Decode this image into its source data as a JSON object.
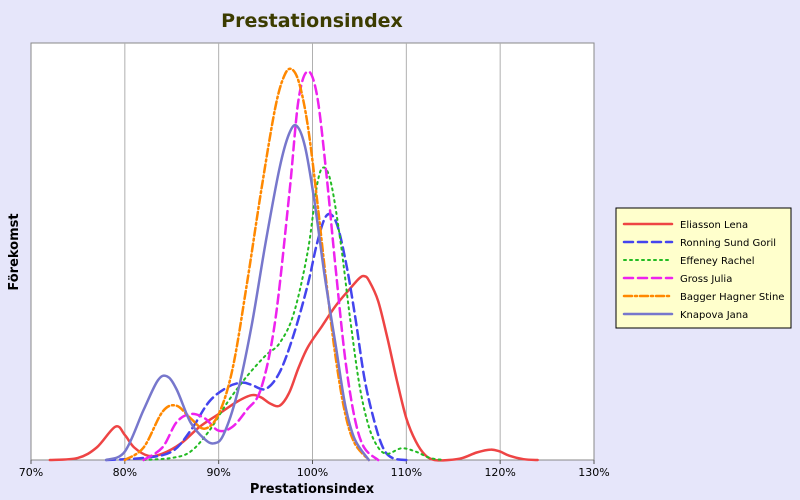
{
  "chart_data": {
    "type": "line",
    "title": "Prestationsindex",
    "xlabel": "Prestationsindex",
    "ylabel": "Förekomst",
    "xlim": [
      70,
      130
    ],
    "ylim": [
      0,
      1
    ],
    "x_ticks": [
      "70%",
      "80%",
      "90%",
      "100%",
      "110%",
      "120%",
      "130%"
    ],
    "grid": "vertical",
    "legend_position": "right",
    "series": [
      {
        "name": "Eliasson Lena",
        "color": "#ee4444",
        "dash": "solid",
        "points": [
          [
            72,
            0
          ],
          [
            75,
            0.005
          ],
          [
            77,
            0.03
          ],
          [
            79,
            0.08
          ],
          [
            80,
            0.06
          ],
          [
            81,
            0.03
          ],
          [
            82.5,
            0.01
          ],
          [
            84,
            0.015
          ],
          [
            86,
            0.04
          ],
          [
            88,
            0.08
          ],
          [
            90,
            0.11
          ],
          [
            92,
            0.14
          ],
          [
            93.5,
            0.155
          ],
          [
            94.5,
            0.15
          ],
          [
            95.5,
            0.135
          ],
          [
            96.5,
            0.13
          ],
          [
            97.5,
            0.16
          ],
          [
            98.5,
            0.22
          ],
          [
            99.5,
            0.27
          ],
          [
            101,
            0.32
          ],
          [
            102.5,
            0.37
          ],
          [
            104,
            0.41
          ],
          [
            105,
            0.435
          ],
          [
            105.5,
            0.44
          ],
          [
            106,
            0.43
          ],
          [
            107,
            0.38
          ],
          [
            108,
            0.29
          ],
          [
            109,
            0.19
          ],
          [
            110,
            0.1
          ],
          [
            111,
            0.045
          ],
          [
            112,
            0.012
          ],
          [
            113,
            0.0
          ],
          [
            114.5,
            0.0
          ],
          [
            116,
            0.005
          ],
          [
            117.5,
            0.018
          ],
          [
            119,
            0.025
          ],
          [
            120,
            0.02
          ],
          [
            121,
            0.01
          ],
          [
            122.5,
            0.002
          ],
          [
            124,
            0
          ]
        ]
      },
      {
        "name": "Ronning Sund Goril",
        "color": "#4444ee",
        "dash": "long-dash",
        "points": [
          [
            78,
            0
          ],
          [
            82,
            0.005
          ],
          [
            85,
            0.02
          ],
          [
            87,
            0.07
          ],
          [
            89,
            0.14
          ],
          [
            91,
            0.175
          ],
          [
            92.5,
            0.185
          ],
          [
            93.5,
            0.18
          ],
          [
            95,
            0.17
          ],
          [
            96.5,
            0.21
          ],
          [
            98,
            0.3
          ],
          [
            99.5,
            0.42
          ],
          [
            100.5,
            0.52
          ],
          [
            101.5,
            0.585
          ],
          [
            102.5,
            0.57
          ],
          [
            103.5,
            0.48
          ],
          [
            104.5,
            0.35
          ],
          [
            105.5,
            0.2
          ],
          [
            106.5,
            0.1
          ],
          [
            107.5,
            0.03
          ],
          [
            108.5,
            0.005
          ],
          [
            110,
            0
          ]
        ]
      },
      {
        "name": "Effeney Rachel",
        "color": "#22bb22",
        "dash": "dotted",
        "points": [
          [
            82,
            0
          ],
          [
            85,
            0.005
          ],
          [
            87,
            0.02
          ],
          [
            89,
            0.07
          ],
          [
            91,
            0.14
          ],
          [
            93,
            0.2
          ],
          [
            95,
            0.25
          ],
          [
            96.5,
            0.28
          ],
          [
            98,
            0.35
          ],
          [
            99.5,
            0.5
          ],
          [
            100.5,
            0.66
          ],
          [
            101.2,
            0.7
          ],
          [
            102,
            0.66
          ],
          [
            103,
            0.52
          ],
          [
            104,
            0.34
          ],
          [
            105,
            0.18
          ],
          [
            106,
            0.08
          ],
          [
            107,
            0.03
          ],
          [
            108,
            0.015
          ],
          [
            109.5,
            0.028
          ],
          [
            111,
            0.02
          ],
          [
            112.5,
            0.005
          ],
          [
            114,
            0
          ]
        ]
      },
      {
        "name": "Gross Julia",
        "color": "#ee22ee",
        "dash": "long-dash",
        "points": [
          [
            82,
            0
          ],
          [
            84,
            0.03
          ],
          [
            85.5,
            0.09
          ],
          [
            87,
            0.11
          ],
          [
            88.5,
            0.1
          ],
          [
            90,
            0.07
          ],
          [
            91.5,
            0.08
          ],
          [
            93,
            0.12
          ],
          [
            94.5,
            0.17
          ],
          [
            96,
            0.33
          ],
          [
            97.5,
            0.63
          ],
          [
            98.5,
            0.86
          ],
          [
            99.5,
            0.93
          ],
          [
            100.5,
            0.87
          ],
          [
            101.5,
            0.68
          ],
          [
            102.5,
            0.45
          ],
          [
            103.5,
            0.24
          ],
          [
            104.5,
            0.1
          ],
          [
            105.5,
            0.03
          ],
          [
            107,
            0
          ]
        ]
      },
      {
        "name": "Bagger Hagner Stine",
        "color": "#ff8800",
        "dash": "dash-dot",
        "points": [
          [
            80,
            0
          ],
          [
            82,
            0.03
          ],
          [
            84,
            0.115
          ],
          [
            85.5,
            0.13
          ],
          [
            87,
            0.1
          ],
          [
            88.5,
            0.075
          ],
          [
            90,
            0.11
          ],
          [
            91.5,
            0.22
          ],
          [
            93,
            0.42
          ],
          [
            94.5,
            0.64
          ],
          [
            96,
            0.84
          ],
          [
            97,
            0.92
          ],
          [
            97.8,
            0.935
          ],
          [
            98.6,
            0.9
          ],
          [
            99.5,
            0.8
          ],
          [
            100.5,
            0.62
          ],
          [
            101.5,
            0.42
          ],
          [
            102.5,
            0.24
          ],
          [
            103.5,
            0.11
          ],
          [
            104.5,
            0.04
          ],
          [
            106,
            0
          ]
        ]
      },
      {
        "name": "Knapova Jana",
        "color": "#7777cc",
        "dash": "solid",
        "points": [
          [
            78,
            0
          ],
          [
            80,
            0.02
          ],
          [
            82,
            0.12
          ],
          [
            83.5,
            0.19
          ],
          [
            84.5,
            0.2
          ],
          [
            85.5,
            0.17
          ],
          [
            87,
            0.09
          ],
          [
            88.5,
            0.05
          ],
          [
            89.5,
            0.04
          ],
          [
            90.5,
            0.06
          ],
          [
            92,
            0.16
          ],
          [
            93.5,
            0.32
          ],
          [
            95,
            0.52
          ],
          [
            96.5,
            0.7
          ],
          [
            97.5,
            0.78
          ],
          [
            98.3,
            0.8
          ],
          [
            99.2,
            0.75
          ],
          [
            100.2,
            0.62
          ],
          [
            101.3,
            0.44
          ],
          [
            102.5,
            0.27
          ],
          [
            103.5,
            0.13
          ],
          [
            104.5,
            0.05
          ],
          [
            106,
            0
          ]
        ]
      }
    ]
  }
}
